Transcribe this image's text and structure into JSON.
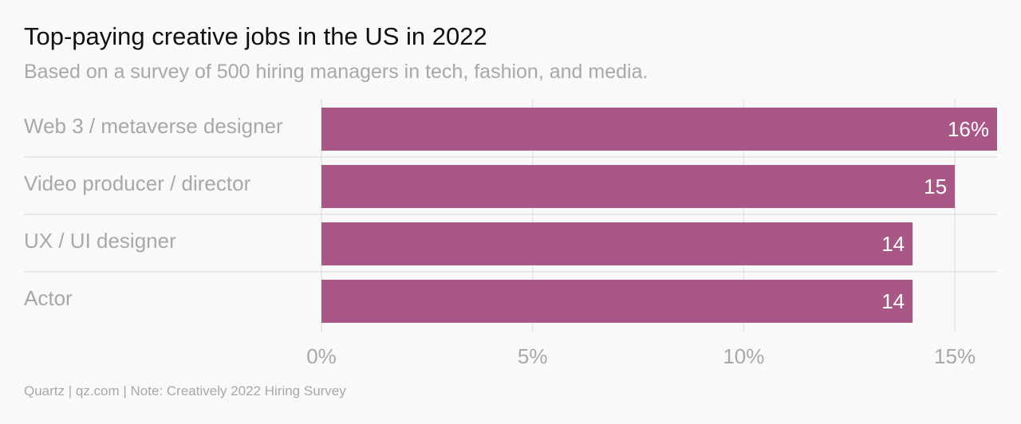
{
  "header": {
    "title": "Top-paying creative jobs in the US in 2022",
    "subtitle": "Based on a survey of 500 hiring managers in tech, fashion, and media."
  },
  "footer": {
    "source": "Quartz | qz.com | Note: Creatively 2022 Hiring Survey"
  },
  "colors": {
    "bar": "#a85787",
    "grid": "#e3e3e3",
    "text_muted": "#a8a8a8"
  },
  "chart_data": {
    "type": "bar",
    "orientation": "horizontal",
    "title": "Top-paying creative jobs in the US in 2022",
    "subtitle": "Based on a survey of 500 hiring managers in tech, fashion, and media.",
    "categories": [
      "Web 3 / metaverse designer",
      "Video producer / director",
      "UX / UI designer",
      "Actor"
    ],
    "values": [
      16,
      15,
      14,
      14
    ],
    "value_labels": [
      "16%",
      "15",
      "14",
      "14"
    ],
    "xlim": [
      0,
      16
    ],
    "x_ticks": [
      0,
      5,
      10,
      15
    ],
    "x_tick_labels": [
      "0%",
      "5%",
      "10%",
      "15%"
    ],
    "xlabel": "",
    "ylabel": "",
    "grid": true,
    "legend": "none"
  }
}
